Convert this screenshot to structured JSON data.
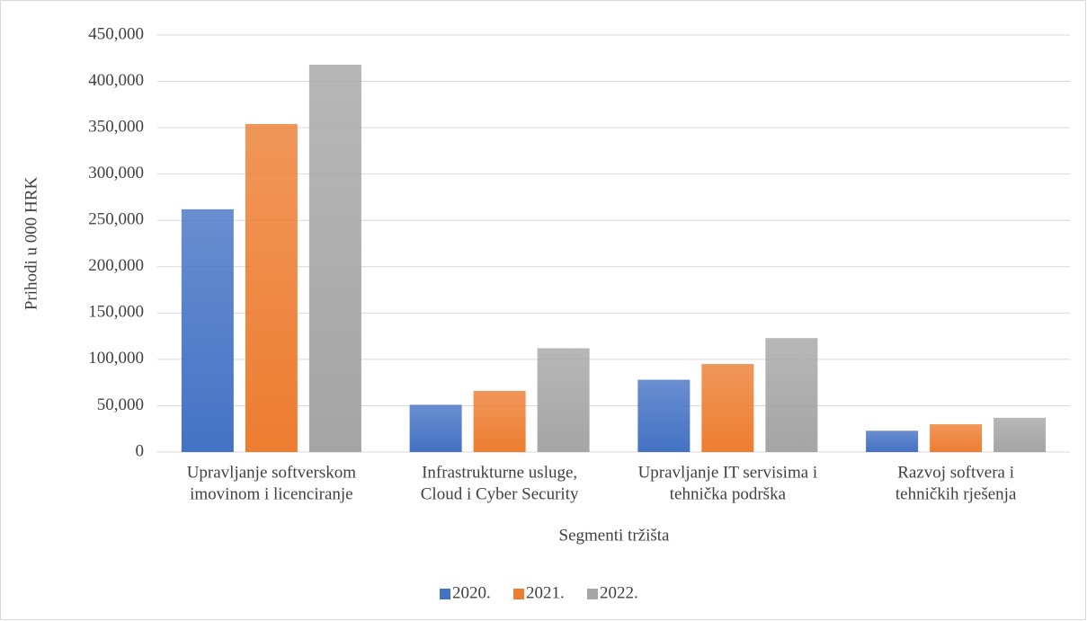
{
  "chart_data": {
    "type": "bar",
    "x_label": "Segmenti tržišta",
    "y_label": "Prihodi u 000 HRK",
    "categories": [
      [
        "Upravljanje softverskom",
        "imovinom i licenciranje"
      ],
      [
        "Infrastrukturne usluge,",
        "Cloud i Cyber Security"
      ],
      [
        "Upravljanje IT servisima i",
        "tehnička podrška"
      ],
      [
        "Razvoj softvera i",
        "tehničkih rješenja"
      ]
    ],
    "series": [
      {
        "name": "2020.",
        "color": "#4472c4",
        "values": [
          262000,
          51000,
          78000,
          23000
        ]
      },
      {
        "name": "2021.",
        "color": "#ed7d31",
        "values": [
          354000,
          66000,
          95000,
          30000
        ]
      },
      {
        "name": "2022.",
        "color": "#a5a5a5",
        "values": [
          418000,
          112000,
          123000,
          37000
        ]
      }
    ],
    "ylim": [
      0,
      450000
    ],
    "yticks": [
      0,
      {
        "value": 50000,
        "label": "50,000"
      },
      {
        "value": 100000,
        "label": "100,000"
      },
      {
        "value": 150000,
        "label": "150,000"
      },
      {
        "value": 200000,
        "label": "200,000"
      },
      {
        "value": 250000,
        "label": "250,000"
      },
      {
        "value": 300000,
        "label": "300,000"
      },
      {
        "value": 350000,
        "label": "350,000"
      },
      {
        "value": 400000,
        "label": "400,000"
      },
      {
        "value": 450000,
        "label": "450,000"
      }
    ],
    "grid": true,
    "legend": "bottom"
  }
}
